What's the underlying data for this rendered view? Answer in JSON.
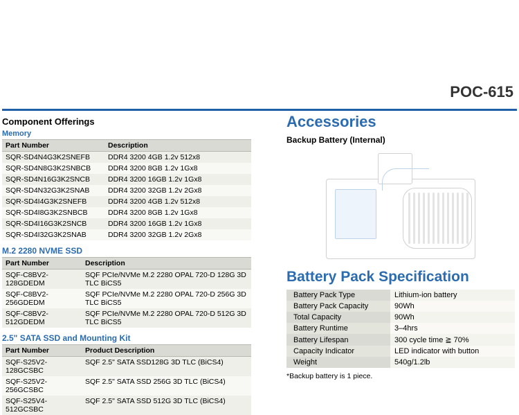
{
  "page_title": "POC-615",
  "top_rule_color": "#1f5fa8",
  "accent_blue": "#2b6cb0",
  "left": {
    "section_title": "Component Offerings",
    "memory": {
      "heading": "Memory",
      "col1": "Part Number",
      "col2": "Description",
      "rows": [
        [
          "SQR-SD4N4G3K2SNEFB",
          "DDR4 3200 4GB 1.2v 512x8"
        ],
        [
          "SQR-SD4N8G3K2SNBCB",
          "DDR4 3200 8GB 1.2v 1Gx8"
        ],
        [
          "SQR-SD4N16G3K2SNCB",
          "DDR4 3200 16GB 1.2v 1Gx8"
        ],
        [
          "SQR-SD4N32G3K2SNAB",
          "DDR4 3200 32GB 1.2v 2Gx8"
        ],
        [
          "SQR-SD4I4G3K2SNEFB",
          "DDR4 3200 4GB 1.2v 512x8"
        ],
        [
          "SQR-SD4I8G3K2SNBCB",
          "DDR4 3200 8GB 1.2v 1Gx8"
        ],
        [
          "SQR-SD4I16G3K2SNCB",
          "DDR4 3200 16GB 1.2v 1Gx8"
        ],
        [
          "SQR-SD4I32G3K2SNAB",
          "DDR4 3200 32GB 1.2v 2Gx8"
        ]
      ]
    },
    "nvme": {
      "heading": "M.2 2280 NVME SSD",
      "col1": "Part Number",
      "col2": "Description",
      "rows": [
        [
          "SQF-C8BV2-128GDEDM",
          "SQF PCIe/NVMe M.2 2280 OPAL 720-D 128G 3D TLC BiCS5"
        ],
        [
          "SQF-C8BV2-256GDEDM",
          "SQF PCIe/NVMe M.2 2280 OPAL 720-D 256G 3D TLC BiCS5"
        ],
        [
          "SQF-C8BV2-512GDEDM",
          "SQF PCIe/NVMe M.2 2280 OPAL 720-D 512G 3D TLC BiCS5"
        ]
      ]
    },
    "sata": {
      "heading": "2.5\" SATA SSD and Mounting Kit",
      "col1": "Part Number",
      "col2": "Product Description",
      "rows": [
        [
          "SQF-S25V2-128GCSBC",
          "SQF 2.5\" SATA SSD128G 3D TLC (BiCS4)"
        ],
        [
          "SQF-S25V2-256GCSBC",
          "SQF 2.5\" SATA SSD 256G 3D TLC (BiCS4)"
        ],
        [
          "SQF-S25V4-512GCSBC",
          "SQF 2.5\" SATA SSD 512G 3D TLC (BiCS4)"
        ]
      ]
    }
  },
  "right": {
    "accessories_heading": "Accessories",
    "backup_battery_sub": "Backup Battery (Internal)",
    "battery_spec_heading": "Battery Pack Specification",
    "spec_rows": [
      [
        "Battery Pack Type",
        "Lithium-ion battery"
      ],
      [
        "Battery Pack Capacity",
        "90Wh"
      ],
      [
        "Total Capacity",
        "90Wh"
      ],
      [
        "Battery Runtime",
        "3–4hrs"
      ],
      [
        "Battery Lifespan",
        "300 cycle time ≧ 70%"
      ],
      [
        "Capacity Indicator",
        "LED indicator with button"
      ],
      [
        "Weight",
        "540g/1.2lb"
      ]
    ],
    "footnote": "*Backup battery is 1 piece."
  }
}
